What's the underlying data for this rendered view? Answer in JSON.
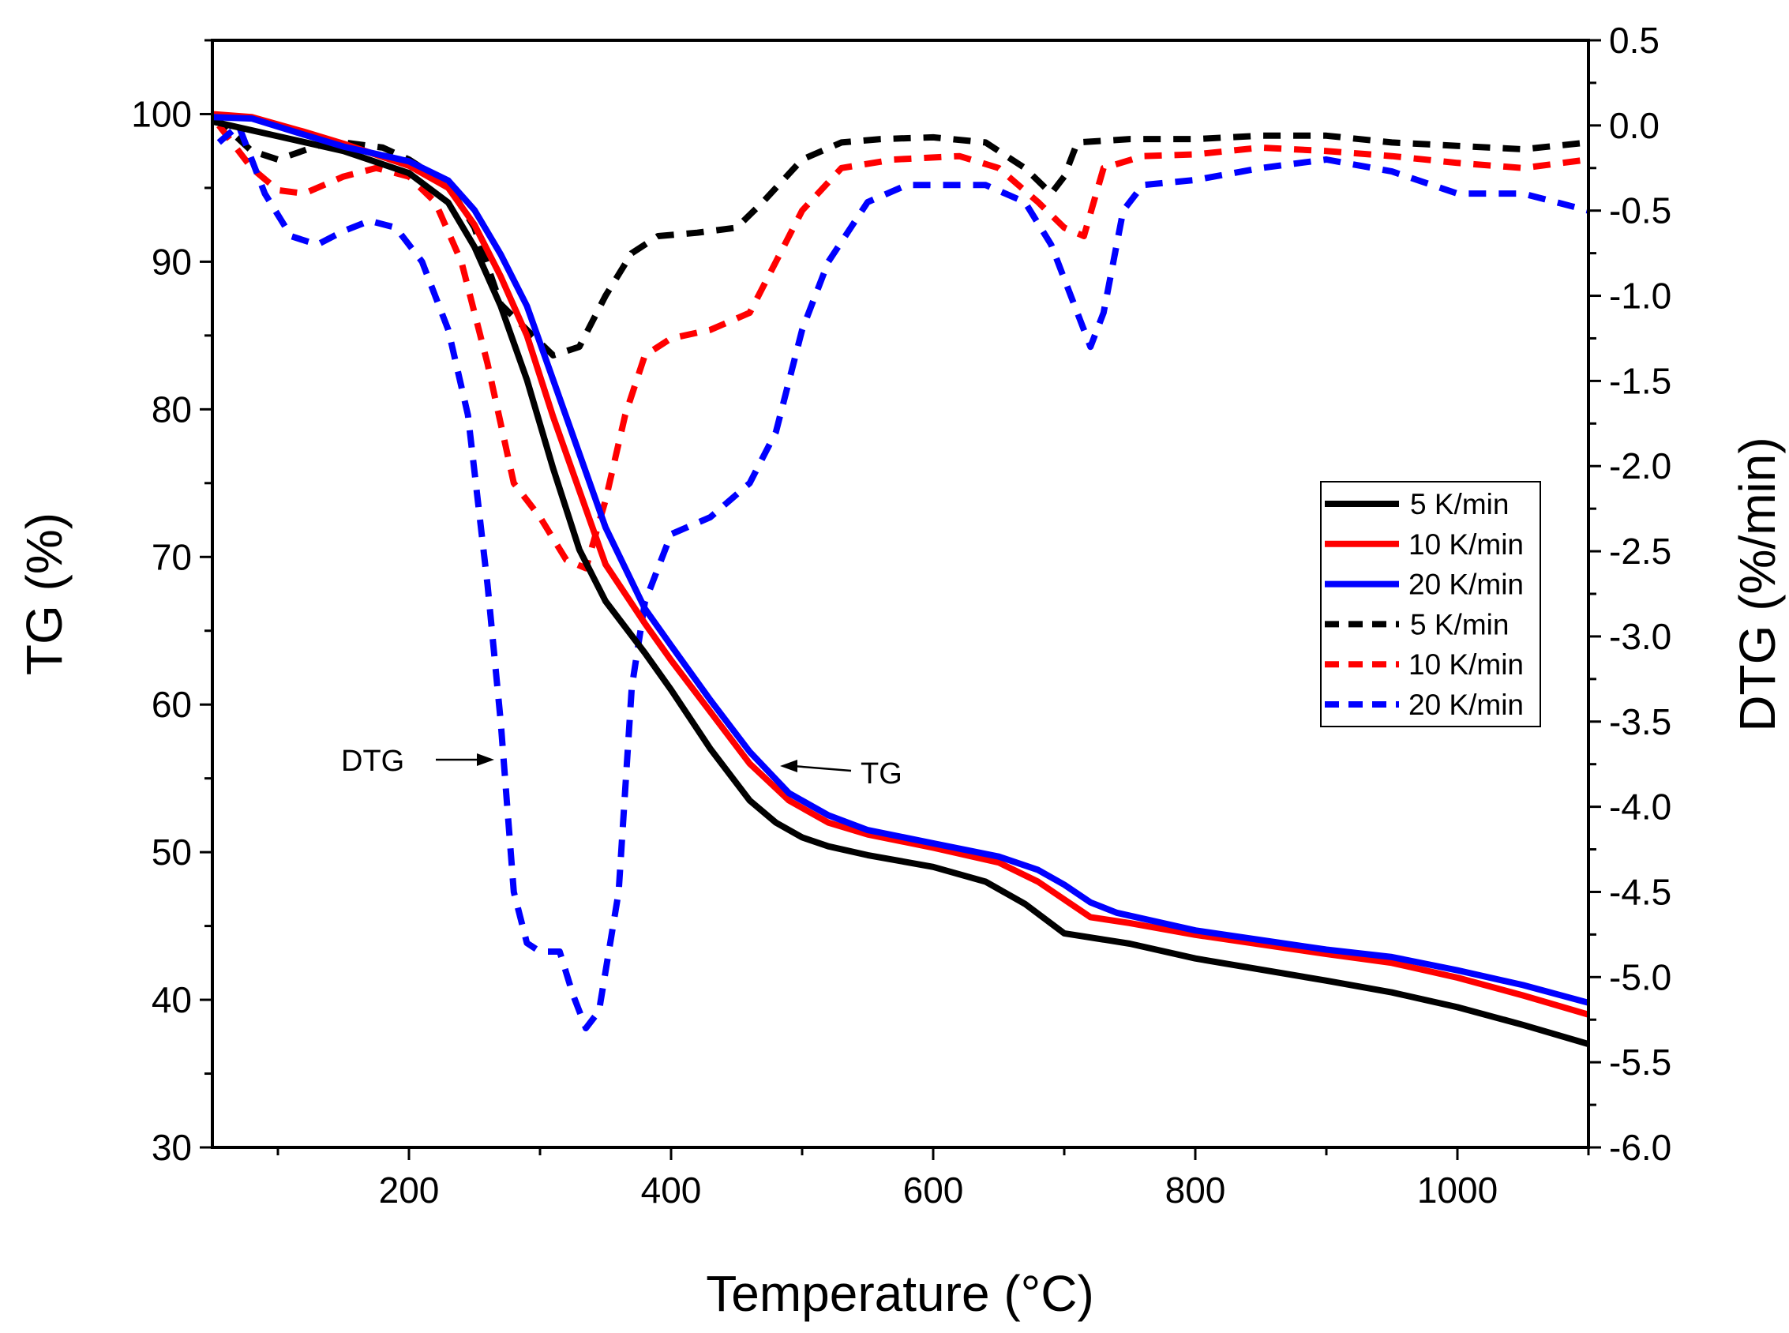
{
  "chart_data": {
    "type": "line",
    "xlabel": "Temperature (°C)",
    "ylabel": "TG (%)",
    "y2label": "DTG (%/min)",
    "xlim": [
      50,
      1100
    ],
    "ylim": [
      30,
      105
    ],
    "y2lim": [
      -6.0,
      0.5
    ],
    "xticks": [
      "200",
      "400",
      "600",
      "800",
      "1000"
    ],
    "yticks": [
      "30",
      "40",
      "50",
      "60",
      "70",
      "80",
      "90",
      "100"
    ],
    "y2ticks": [
      "0.5",
      "0.0",
      "-0.5",
      "-1.0",
      "-1.5",
      "-2.0",
      "-2.5",
      "-3.0",
      "-3.5",
      "-4.0",
      "-4.5",
      "-5.0",
      "-5.5",
      "-6.0"
    ],
    "grid": false,
    "legend_position": "center-right",
    "annotations": [
      {
        "text": "DTG"
      },
      {
        "text": "TG"
      }
    ],
    "series": [
      {
        "name": "5 K/min",
        "axis": "TG",
        "color": "#000000",
        "style": "solid",
        "points": [
          [
            50,
            99.5
          ],
          [
            100,
            98.5
          ],
          [
            150,
            97.5
          ],
          [
            200,
            96
          ],
          [
            230,
            94
          ],
          [
            250,
            91
          ],
          [
            270,
            87
          ],
          [
            290,
            82
          ],
          [
            310,
            76
          ],
          [
            330,
            70.5
          ],
          [
            350,
            67
          ],
          [
            380,
            63.5
          ],
          [
            400,
            61
          ],
          [
            430,
            57
          ],
          [
            460,
            53.5
          ],
          [
            480,
            52
          ],
          [
            500,
            51
          ],
          [
            520,
            50.4
          ],
          [
            550,
            49.8
          ],
          [
            600,
            49
          ],
          [
            640,
            48
          ],
          [
            670,
            46.5
          ],
          [
            700,
            44.5
          ],
          [
            750,
            43.8
          ],
          [
            800,
            42.8
          ],
          [
            900,
            41.3
          ],
          [
            950,
            40.5
          ],
          [
            1000,
            39.5
          ],
          [
            1050,
            38.3
          ],
          [
            1100,
            37
          ]
        ]
      },
      {
        "name": "10 K/min",
        "axis": "TG",
        "color": "#ff0000",
        "style": "solid",
        "points": [
          [
            50,
            100
          ],
          [
            80,
            99.8
          ],
          [
            120,
            98.8
          ],
          [
            150,
            98
          ],
          [
            200,
            96.5
          ],
          [
            230,
            95
          ],
          [
            250,
            92.5
          ],
          [
            270,
            89
          ],
          [
            290,
            85
          ],
          [
            310,
            79.5
          ],
          [
            330,
            74.5
          ],
          [
            350,
            69.5
          ],
          [
            380,
            65.5
          ],
          [
            400,
            63
          ],
          [
            430,
            59.5
          ],
          [
            460,
            56
          ],
          [
            490,
            53.5
          ],
          [
            520,
            52
          ],
          [
            550,
            51.2
          ],
          [
            600,
            50.3
          ],
          [
            650,
            49.3
          ],
          [
            680,
            48
          ],
          [
            700,
            46.8
          ],
          [
            720,
            45.6
          ],
          [
            750,
            45.2
          ],
          [
            800,
            44.4
          ],
          [
            900,
            43.1
          ],
          [
            950,
            42.5
          ],
          [
            1000,
            41.5
          ],
          [
            1050,
            40.3
          ],
          [
            1100,
            39
          ]
        ]
      },
      {
        "name": "20 K/min",
        "axis": "TG",
        "color": "#0000ff",
        "style": "solid",
        "points": [
          [
            50,
            99.8
          ],
          [
            80,
            99.7
          ],
          [
            120,
            98.6
          ],
          [
            150,
            97.8
          ],
          [
            200,
            96.8
          ],
          [
            230,
            95.5
          ],
          [
            250,
            93.5
          ],
          [
            270,
            90.5
          ],
          [
            290,
            87
          ],
          [
            310,
            82
          ],
          [
            330,
            77
          ],
          [
            350,
            72
          ],
          [
            380,
            66.5
          ],
          [
            400,
            64
          ],
          [
            430,
            60.3
          ],
          [
            460,
            56.8
          ],
          [
            490,
            54
          ],
          [
            520,
            52.5
          ],
          [
            550,
            51.5
          ],
          [
            600,
            50.6
          ],
          [
            650,
            49.7
          ],
          [
            680,
            48.8
          ],
          [
            700,
            47.8
          ],
          [
            720,
            46.6
          ],
          [
            740,
            45.9
          ],
          [
            800,
            44.7
          ],
          [
            900,
            43.4
          ],
          [
            950,
            42.9
          ],
          [
            1000,
            42
          ],
          [
            1050,
            41
          ],
          [
            1100,
            39.8
          ]
        ]
      },
      {
        "name": "5 K/min",
        "axis": "DTG",
        "color": "#000000",
        "style": "dashed",
        "points": [
          [
            52,
            0.05
          ],
          [
            80,
            -0.15
          ],
          [
            100,
            -0.2
          ],
          [
            130,
            -0.12
          ],
          [
            150,
            -0.1
          ],
          [
            180,
            -0.13
          ],
          [
            200,
            -0.2
          ],
          [
            230,
            -0.35
          ],
          [
            250,
            -0.6
          ],
          [
            270,
            -1.05
          ],
          [
            290,
            -1.2
          ],
          [
            310,
            -1.35
          ],
          [
            330,
            -1.3
          ],
          [
            350,
            -1.0
          ],
          [
            370,
            -0.75
          ],
          [
            390,
            -0.65
          ],
          [
            420,
            -0.63
          ],
          [
            450,
            -0.6
          ],
          [
            470,
            -0.45
          ],
          [
            500,
            -0.2
          ],
          [
            530,
            -0.1
          ],
          [
            560,
            -0.08
          ],
          [
            600,
            -0.07
          ],
          [
            640,
            -0.1
          ],
          [
            670,
            -0.25
          ],
          [
            690,
            -0.4
          ],
          [
            700,
            -0.3
          ],
          [
            710,
            -0.1
          ],
          [
            750,
            -0.08
          ],
          [
            800,
            -0.08
          ],
          [
            850,
            -0.06
          ],
          [
            900,
            -0.06
          ],
          [
            950,
            -0.1
          ],
          [
            1000,
            -0.12
          ],
          [
            1050,
            -0.14
          ],
          [
            1100,
            -0.1
          ]
        ]
      },
      {
        "name": "10 K/min",
        "axis": "DTG",
        "color": "#ff0000",
        "style": "dashed",
        "points": [
          [
            55,
            0
          ],
          [
            80,
            -0.25
          ],
          [
            100,
            -0.38
          ],
          [
            120,
            -0.4
          ],
          [
            150,
            -0.3
          ],
          [
            175,
            -0.25
          ],
          [
            200,
            -0.3
          ],
          [
            220,
            -0.45
          ],
          [
            240,
            -0.8
          ],
          [
            260,
            -1.4
          ],
          [
            280,
            -2.1
          ],
          [
            300,
            -2.3
          ],
          [
            320,
            -2.55
          ],
          [
            335,
            -2.6
          ],
          [
            350,
            -2.2
          ],
          [
            365,
            -1.7
          ],
          [
            380,
            -1.35
          ],
          [
            400,
            -1.25
          ],
          [
            430,
            -1.2
          ],
          [
            460,
            -1.1
          ],
          [
            480,
            -0.8
          ],
          [
            500,
            -0.5
          ],
          [
            530,
            -0.25
          ],
          [
            570,
            -0.2
          ],
          [
            620,
            -0.18
          ],
          [
            650,
            -0.25
          ],
          [
            680,
            -0.45
          ],
          [
            700,
            -0.6
          ],
          [
            715,
            -0.65
          ],
          [
            730,
            -0.25
          ],
          [
            760,
            -0.18
          ],
          [
            800,
            -0.17
          ],
          [
            850,
            -0.13
          ],
          [
            900,
            -0.15
          ],
          [
            950,
            -0.18
          ],
          [
            1000,
            -0.22
          ],
          [
            1050,
            -0.25
          ],
          [
            1100,
            -0.2
          ]
        ]
      },
      {
        "name": "20 K/min",
        "axis": "DTG",
        "color": "#0000ff",
        "style": "dashed",
        "points": [
          [
            55,
            -0.1
          ],
          [
            70,
            0
          ],
          [
            90,
            -0.4
          ],
          [
            110,
            -0.65
          ],
          [
            130,
            -0.7
          ],
          [
            150,
            -0.62
          ],
          [
            170,
            -0.56
          ],
          [
            190,
            -0.6
          ],
          [
            210,
            -0.8
          ],
          [
            230,
            -1.2
          ],
          [
            245,
            -1.7
          ],
          [
            260,
            -2.7
          ],
          [
            270,
            -3.5
          ],
          [
            280,
            -4.5
          ],
          [
            290,
            -4.8
          ],
          [
            300,
            -4.85
          ],
          [
            315,
            -4.85
          ],
          [
            325,
            -5.1
          ],
          [
            335,
            -5.3
          ],
          [
            345,
            -5.2
          ],
          [
            360,
            -4.5
          ],
          [
            370,
            -3.3
          ],
          [
            380,
            -2.8
          ],
          [
            400,
            -2.4
          ],
          [
            430,
            -2.3
          ],
          [
            460,
            -2.1
          ],
          [
            480,
            -1.8
          ],
          [
            500,
            -1.2
          ],
          [
            520,
            -0.8
          ],
          [
            550,
            -0.45
          ],
          [
            580,
            -0.35
          ],
          [
            640,
            -0.35
          ],
          [
            670,
            -0.45
          ],
          [
            690,
            -0.7
          ],
          [
            710,
            -1.1
          ],
          [
            720,
            -1.3
          ],
          [
            730,
            -1.1
          ],
          [
            745,
            -0.5
          ],
          [
            760,
            -0.35
          ],
          [
            800,
            -0.32
          ],
          [
            850,
            -0.25
          ],
          [
            900,
            -0.2
          ],
          [
            950,
            -0.27
          ],
          [
            1000,
            -0.4
          ],
          [
            1050,
            -0.4
          ],
          [
            1100,
            -0.5
          ]
        ]
      }
    ]
  }
}
